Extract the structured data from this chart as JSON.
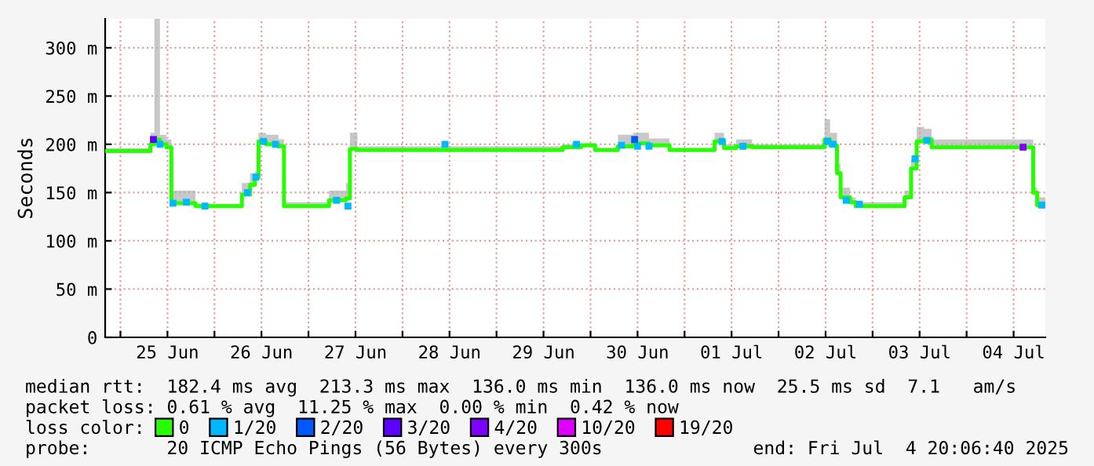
{
  "chart_data": {
    "type": "step",
    "ylabel": "Seconds",
    "legend_title": "loss color:",
    "legend": "bottom",
    "grid": true,
    "line_style": "solid",
    "xlim": [
      "2025-06-24T20:06",
      "2025-07-04T20:06"
    ],
    "xticks": [
      {
        "value": "2025-06-25T00:00",
        "label": null
      },
      {
        "value": "2025-06-25T12:00",
        "label": "25 Jun"
      },
      {
        "value": "2025-06-26T00:00",
        "label": null
      },
      {
        "value": "2025-06-26T12:00",
        "label": "26 Jun"
      },
      {
        "value": "2025-06-27T00:00",
        "label": null
      },
      {
        "value": "2025-06-27T12:00",
        "label": "27 Jun"
      },
      {
        "value": "2025-06-28T00:00",
        "label": null
      },
      {
        "value": "2025-06-28T12:00",
        "label": "28 Jun"
      },
      {
        "value": "2025-06-29T00:00",
        "label": null
      },
      {
        "value": "2025-06-29T12:00",
        "label": "29 Jun"
      },
      {
        "value": "2025-06-30T00:00",
        "label": null
      },
      {
        "value": "2025-06-30T12:00",
        "label": "30 Jun"
      },
      {
        "value": "2025-07-01T00:00",
        "label": null
      },
      {
        "value": "2025-07-01T12:00",
        "label": "01 Jul"
      },
      {
        "value": "2025-07-02T00:00",
        "label": null
      },
      {
        "value": "2025-07-02T12:00",
        "label": "02 Jul"
      },
      {
        "value": "2025-07-03T00:00",
        "label": null
      },
      {
        "value": "2025-07-03T12:00",
        "label": "03 Jul"
      },
      {
        "value": "2025-07-04T00:00",
        "label": null
      },
      {
        "value": "2025-07-04T12:00",
        "label": "04 Jul"
      }
    ],
    "ylim": [
      0,
      330
    ],
    "yticks": [
      0,
      {
        "value": 50,
        "label": "50 m"
      },
      {
        "value": 100,
        "label": "100 m"
      },
      {
        "value": 150,
        "label": "150 m"
      },
      {
        "value": 200,
        "label": "200 m"
      },
      {
        "value": 250,
        "label": "250 m"
      },
      {
        "value": 300,
        "label": "300 m"
      }
    ],
    "series": [
      {
        "name": "0",
        "color": "#26ff00",
        "x": [
          "2025-06-24T20:06",
          "2025-06-25T07:40",
          "2025-06-25T08:40",
          "2025-06-25T10:05",
          "2025-06-25T11:45",
          "2025-06-25T13:00",
          "2025-06-25T19:10",
          "2025-06-26T07:00",
          "2025-06-26T09:05",
          "2025-06-26T10:20",
          "2025-06-26T11:15",
          "2025-06-26T13:10",
          "2025-06-26T16:20",
          "2025-06-26T17:45",
          "2025-06-27T05:15",
          "2025-06-27T09:35",
          "2025-06-27T10:35",
          "2025-06-27T12:30",
          "2025-06-29T16:50",
          "2025-06-29T21:35",
          "2025-06-30T01:10",
          "2025-06-30T07:00",
          "2025-06-30T10:50",
          "2025-06-30T14:55",
          "2025-06-30T20:10",
          "2025-07-01T07:40",
          "2025-07-01T10:05",
          "2025-07-01T13:10",
          "2025-07-01T17:15",
          "2025-07-02T11:45",
          "2025-07-02T13:10",
          "2025-07-02T14:55",
          "2025-07-02T15:50",
          "2025-07-02T18:15",
          "2025-07-02T19:40",
          "2025-07-03T08:10",
          "2025-07-03T09:50",
          "2025-07-03T11:15",
          "2025-07-03T13:10",
          "2025-07-03T15:05",
          "2025-07-04T17:00",
          "2025-07-04T18:00",
          "2025-07-04T20:06"
        ],
        "values": [
          193,
          200,
          205,
          200,
          197,
          139,
          136,
          148,
          158,
          166,
          203,
          200,
          198,
          136,
          142,
          144,
          195,
          194,
          197,
          199,
          194,
          198,
          201,
          199,
          194,
          203,
          196,
          198,
          197,
          205,
          199,
          170,
          145,
          140,
          136,
          145,
          175,
          203,
          205,
          197,
          150,
          137,
          137
        ],
        "lower": [
          193,
          200,
          205,
          200,
          197,
          139,
          136,
          148,
          158,
          166,
          203,
          200,
          198,
          136,
          142,
          144,
          195,
          194,
          197,
          199,
          194,
          198,
          201,
          199,
          194,
          203,
          196,
          198,
          197,
          205,
          199,
          170,
          145,
          140,
          136,
          145,
          175,
          203,
          205,
          197,
          150,
          137,
          137
        ],
        "upper": [
          196,
          212,
          330,
          210,
          205,
          152,
          138,
          160,
          170,
          172,
          212,
          210,
          205,
          140,
          152,
          160,
          212,
          198,
          200,
          201,
          196,
          210,
          212,
          206,
          196,
          212,
          200,
          205,
          200,
          226,
          212,
          180,
          155,
          145,
          140,
          152,
          185,
          218,
          216,
          205,
          155,
          145,
          145
        ]
      },
      {
        "name": "1/20",
        "type": "scatter",
        "marker": "square",
        "color": "#00b8ff",
        "x": [
          "2025-06-25T10:05",
          "2025-06-25T13:25",
          "2025-06-25T16:50",
          "2025-06-25T21:35",
          "2025-06-26T08:25",
          "2025-06-26T10:35",
          "2025-06-26T12:30",
          "2025-06-26T15:35",
          "2025-06-27T07:10",
          "2025-06-27T10:05",
          "2025-06-28T10:50",
          "2025-06-29T20:25",
          "2025-06-30T07:55",
          "2025-06-30T12:00",
          "2025-06-30T14:55",
          "2025-07-01T09:35",
          "2025-07-01T14:55",
          "2025-07-02T12:30",
          "2025-07-02T13:55",
          "2025-07-02T17:15",
          "2025-07-02T20:38",
          "2025-07-03T10:50",
          "2025-07-03T13:55",
          "2025-07-04T19:12"
        ],
        "values": [
          200,
          139,
          140,
          136,
          150,
          166,
          203,
          200,
          142,
          136,
          200,
          200,
          199,
          198,
          198,
          203,
          198,
          203,
          200,
          142,
          138,
          185,
          204,
          137
        ]
      },
      {
        "name": "2/20",
        "type": "scatter",
        "marker": "square",
        "color": "#0059ff",
        "x": [
          "2025-06-30T11:15"
        ],
        "values": [
          205
        ]
      },
      {
        "name": "3/20",
        "type": "scatter",
        "marker": "square",
        "color": "#5e00ff",
        "x": [
          "2025-06-25T08:25"
        ],
        "values": [
          205
        ]
      },
      {
        "name": "4/20",
        "type": "scatter",
        "marker": "square",
        "color": "#7e00ff",
        "x": [
          "2025-07-04T14:25"
        ],
        "values": [
          197
        ]
      },
      {
        "name": "10/20",
        "type": "scatter",
        "marker": "square",
        "color": "#dd00ff"
      },
      {
        "name": "19/20",
        "type": "scatter",
        "marker": "square",
        "color": "#ff0000"
      }
    ],
    "annotations": [
      "median rtt:  182.4 ms avg  213.3 ms max  136.0 ms min  136.0 ms now  25.5 ms sd  7.1   am/s",
      "packet loss: 0.61 % avg  11.25 % max  0.00 % min  0.42 % now",
      "probe:       20 ICMP Echo Pings (56 Bytes) every 300s",
      "end: Fri Jul  4 20:06:40 2025"
    ]
  }
}
